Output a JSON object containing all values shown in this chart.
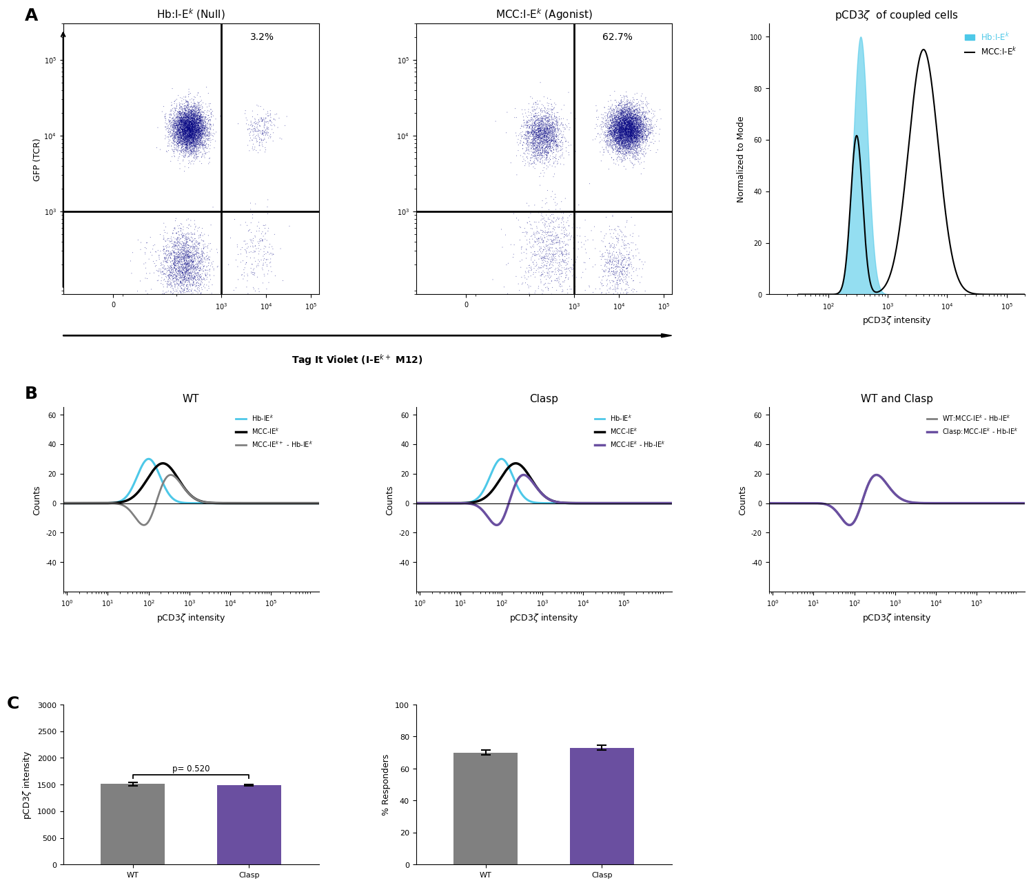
{
  "panel_A_title1": "Hb:I-E$^k$ (Null)",
  "panel_A_title2": "MCC:I-E$^k$ (Agonist)",
  "panel_A_title3": "pCD3ζ  of coupled cells",
  "panel_A_pct1": "3.2%",
  "panel_A_pct2": "62.7%",
  "panel_A_ylabel": "GFP (TCR)",
  "panel_A_xlabel": "Tag It Violet (I-E$^{k+}$ M12)",
  "panel_A_hist_ylabel": "Normalized to Mode",
  "panel_A_hist_xlabel": "pCD3ζ intensity",
  "panel_A_hist_legend1": "Hb:I-E$^k$",
  "panel_A_hist_legend2": "MCC:I-E$^k$",
  "panel_B_title1": "WT",
  "panel_B_title2": "Clasp",
  "panel_B_title3": "WT and Clasp",
  "panel_B_xlabel": "pCD3ζ intensity",
  "panel_B_ylabel": "Counts",
  "panel_B_legend1_1": "Hb-IE$^k$",
  "panel_B_legend1_2": "MCC-IE$^k$",
  "panel_B_legend1_3": "MCC-IE$^{k+}$ - Hb-IE$^k$",
  "panel_B_legend2_1": "Hb-IE$^k$",
  "panel_B_legend2_2": "MCC-IE$^k$",
  "panel_B_legend2_3": "MCC-IE$^k$ - Hb-IE$^k$",
  "panel_B_legend3_1": "WT:MCC-IE$^k$ - Hb-IE$^k$",
  "panel_B_legend3_2": "Clasp:MCC-IE$^k$ - Hb-IE$^k$",
  "panel_C_ylabel1": "pCD3ζ intensity",
  "panel_C_ylabel2": "% Responders",
  "panel_C_bar1_WT": 1510,
  "panel_C_bar1_Clasp": 1490,
  "panel_C_bar1_err_WT": 28,
  "panel_C_bar1_err_Clasp": 18,
  "panel_C_bar2_WT": 70,
  "panel_C_bar2_Clasp": 73,
  "panel_C_bar2_err_WT": 1.5,
  "panel_C_bar2_err_Clasp": 1.5,
  "panel_C_pval": "p= 0.520",
  "color_cyan": "#4DC8E8",
  "color_black": "#000000",
  "color_gray": "#808080",
  "color_darkgray": "#606060",
  "color_purple": "#6A4FA0",
  "color_bar_gray": "#808080",
  "color_bar_purple": "#6A4FA0",
  "background": "#FFFFFF"
}
